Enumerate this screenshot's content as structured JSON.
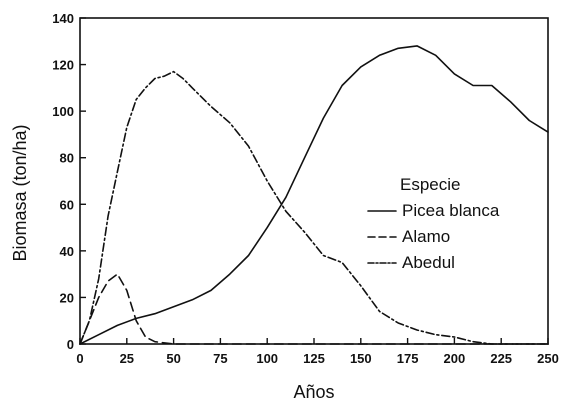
{
  "chart_data": {
    "type": "line",
    "xlabel": "Años",
    "ylabel": "Biomasa (ton/ha)",
    "xlim": [
      0,
      250
    ],
    "ylim": [
      0,
      140
    ],
    "x_ticks": [
      0,
      25,
      50,
      75,
      100,
      125,
      150,
      175,
      200,
      225,
      250
    ],
    "y_ticks": [
      0,
      20,
      40,
      60,
      80,
      100,
      120,
      140
    ],
    "grid": false,
    "legend": {
      "title": "Especie",
      "position": "center-right"
    },
    "series": [
      {
        "name": "Picea blanca",
        "style": "solid",
        "color": "#111111",
        "x": [
          0,
          10,
          20,
          30,
          40,
          50,
          60,
          70,
          80,
          90,
          100,
          110,
          120,
          130,
          140,
          150,
          160,
          170,
          180,
          190,
          200,
          210,
          220,
          230,
          240,
          250
        ],
        "y": [
          0,
          4,
          8,
          11,
          13,
          16,
          19,
          23,
          30,
          38,
          50,
          63,
          80,
          97,
          111,
          119,
          124,
          127,
          128,
          124,
          116,
          111,
          111,
          104,
          96,
          91
        ]
      },
      {
        "name": "Alamo",
        "style": "dashed",
        "color": "#111111",
        "x": [
          0,
          5,
          10,
          15,
          20,
          25,
          30,
          35,
          40,
          50,
          60,
          75,
          100,
          150,
          200,
          250
        ],
        "y": [
          0,
          10,
          20,
          27,
          30,
          23,
          10,
          3,
          1,
          0,
          0,
          0,
          0,
          0,
          0,
          0
        ]
      },
      {
        "name": "Abedul",
        "style": "dash-dot",
        "color": "#111111",
        "x": [
          0,
          5,
          10,
          15,
          20,
          25,
          30,
          35,
          40,
          45,
          50,
          55,
          60,
          70,
          80,
          90,
          100,
          110,
          120,
          130,
          140,
          150,
          160,
          170,
          180,
          190,
          200,
          210,
          220,
          230,
          240,
          250
        ],
        "y": [
          0,
          10,
          28,
          55,
          74,
          93,
          105,
          110,
          114,
          115,
          117,
          114,
          110,
          102,
          95,
          85,
          70,
          57,
          48,
          38,
          35,
          25,
          14,
          9,
          6,
          4,
          3,
          1,
          0,
          0,
          0,
          0
        ]
      }
    ]
  }
}
